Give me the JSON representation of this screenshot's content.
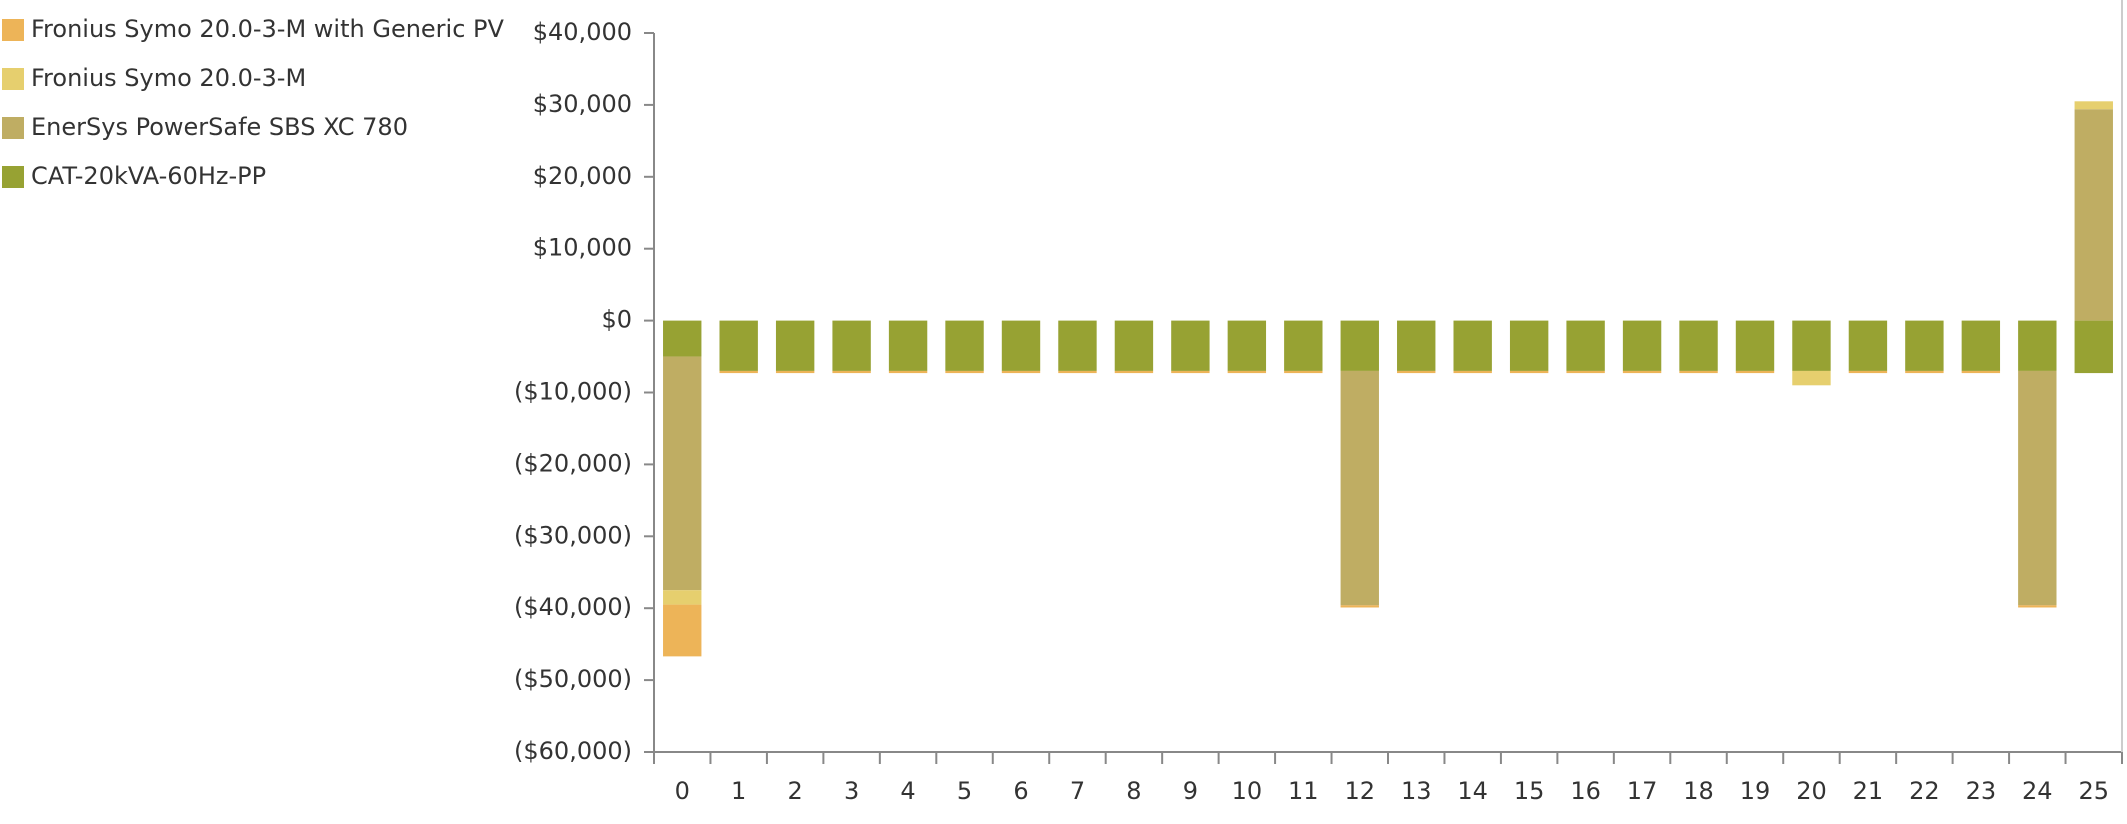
{
  "chart_data": {
    "type": "bar",
    "stacked": true,
    "categories": [
      "0",
      "1",
      "2",
      "3",
      "4",
      "5",
      "6",
      "7",
      "8",
      "9",
      "10",
      "11",
      "12",
      "13",
      "14",
      "15",
      "16",
      "17",
      "18",
      "19",
      "20",
      "21",
      "22",
      "23",
      "24",
      "25"
    ],
    "series": [
      {
        "name": "Fronius Symo 20.0-3-M with Generic PV",
        "color": "#edb458",
        "values": [
          -7200,
          -300,
          -300,
          -300,
          -300,
          -300,
          -300,
          -300,
          -300,
          -300,
          -300,
          -300,
          -300,
          -300,
          -300,
          -300,
          -300,
          -300,
          -300,
          -300,
          0,
          -300,
          -300,
          -300,
          -300,
          0
        ]
      },
      {
        "name": "Fronius Symo 20.0-3-M",
        "color": "#e6cf6e",
        "values": [
          -2000,
          0,
          0,
          0,
          0,
          0,
          0,
          0,
          0,
          0,
          0,
          0,
          0,
          0,
          0,
          0,
          0,
          0,
          0,
          0,
          -2000,
          0,
          0,
          0,
          0,
          1100
        ]
      },
      {
        "name": "EnerSys PowerSafe SBS XC 780",
        "color": "#bfad63",
        "values": [
          -32500,
          0,
          0,
          0,
          0,
          0,
          0,
          0,
          0,
          0,
          0,
          0,
          -32600,
          0,
          0,
          0,
          0,
          0,
          0,
          0,
          0,
          0,
          0,
          0,
          -32600,
          29400
        ]
      },
      {
        "name": "CAT-20kVA-60Hz-PP",
        "color": "#97a233",
        "values": [
          -5000,
          -7000,
          -7000,
          -7000,
          -7000,
          -7000,
          -7000,
          -7000,
          -7000,
          -7000,
          -7000,
          -7000,
          -7000,
          -7000,
          -7000,
          -7000,
          -7000,
          -7000,
          -7000,
          -7000,
          -7000,
          -7000,
          -7000,
          -7000,
          -7000,
          -7300
        ]
      }
    ],
    "ylim": [
      -60000,
      40000
    ],
    "yticks": [
      {
        "value": 40000,
        "label": "$40,000"
      },
      {
        "value": 30000,
        "label": "$30,000"
      },
      {
        "value": 20000,
        "label": "$20,000"
      },
      {
        "value": 10000,
        "label": "$10,000"
      },
      {
        "value": 0,
        "label": "$0"
      },
      {
        "value": -10000,
        "label": "($10,000)"
      },
      {
        "value": -20000,
        "label": "($20,000)"
      },
      {
        "value": -30000,
        "label": "($30,000)"
      },
      {
        "value": -40000,
        "label": "($40,000)"
      },
      {
        "value": -50000,
        "label": "($50,000)"
      },
      {
        "value": -60000,
        "label": "($60,000)"
      }
    ],
    "grid": false,
    "legend": "top-left"
  }
}
